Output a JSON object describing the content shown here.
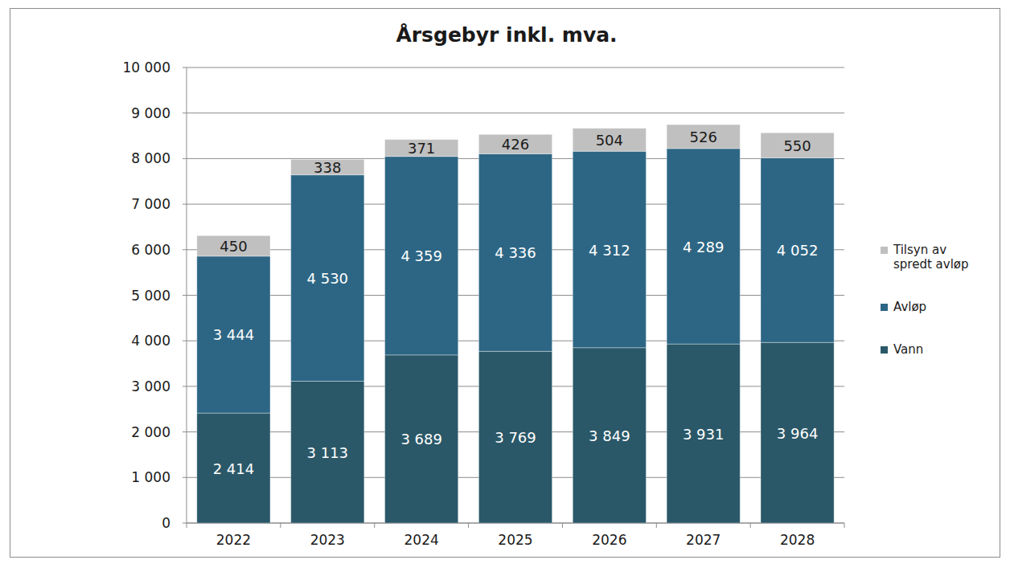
{
  "chart_data": {
    "type": "bar",
    "title": "Årsgebyr inkl. mva.",
    "stacked": true,
    "data_labels": true,
    "grid": true,
    "legend": "right",
    "categories": [
      "2022",
      "2023",
      "2024",
      "2025",
      "2026",
      "2027",
      "2028"
    ],
    "ylim": [
      0,
      10000
    ],
    "yticks": [
      0,
      {
        "value": 1000,
        "label": "1 000"
      },
      {
        "value": 2000,
        "label": "2 000"
      },
      {
        "value": 3000,
        "label": "3 000"
      },
      {
        "value": 4000,
        "label": "4 000"
      },
      {
        "value": 5000,
        "label": "5 000"
      },
      {
        "value": 6000,
        "label": "6 000"
      },
      {
        "value": 7000,
        "label": "7 000"
      },
      {
        "value": 8000,
        "label": "8 000"
      },
      {
        "value": 9000,
        "label": "9 000"
      },
      {
        "value": 10000,
        "label": "10 000"
      }
    ],
    "series": [
      {
        "name": "Vann",
        "color": "#2a5868",
        "values": [
          2414,
          3113,
          3689,
          3769,
          3849,
          3931,
          3964
        ],
        "value_labels": [
          "2 414",
          "3 113",
          "3 689",
          "3 769",
          "3 849",
          "3 931",
          "3 964"
        ]
      },
      {
        "name": "Avløp",
        "color": "#2d6684",
        "values": [
          3444,
          4530,
          4359,
          4336,
          4312,
          4289,
          4052
        ],
        "value_labels": [
          "3 444",
          "4 530",
          "4 359",
          "4 336",
          "4 312",
          "4 289",
          "4 052"
        ]
      },
      {
        "name": "Tilsyn av spredt avløp",
        "color": "#c0c0c0",
        "values": [
          450,
          338,
          371,
          426,
          504,
          526,
          550
        ]
      }
    ]
  }
}
